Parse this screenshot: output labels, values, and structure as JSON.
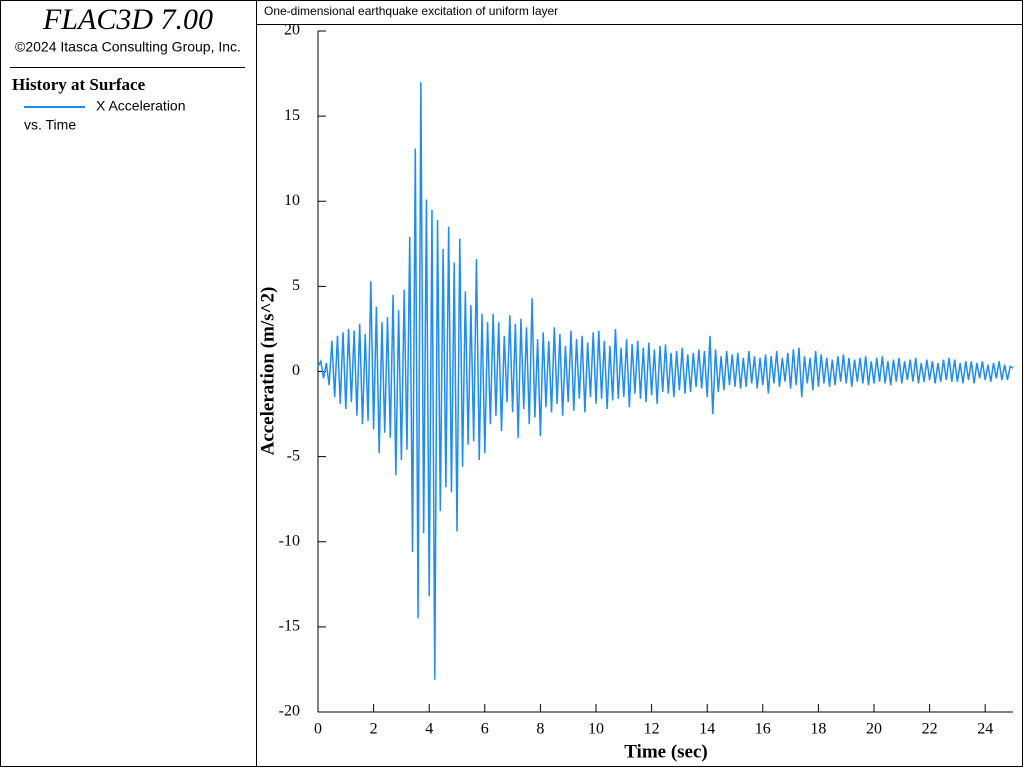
{
  "chart_data": {
    "type": "line",
    "software": "FLAC3D 7.00",
    "copyright": "©2024 Itasca Consulting Group, Inc.",
    "history_title": "History at Surface",
    "history_vs": "vs. Time",
    "title": "One-dimensional earthquake excitation of uniform layer",
    "x_label": "Time (sec)",
    "y_label": "Acceleration (m/s^2)",
    "xlim": [
      0,
      25
    ],
    "ylim": [
      -20,
      20
    ],
    "xticks": [
      0,
      2,
      4,
      6,
      8,
      10,
      12,
      14,
      16,
      18,
      20,
      22,
      24
    ],
    "yticks": [
      -20,
      -15,
      -10,
      -5,
      0,
      5,
      10,
      15,
      20
    ],
    "x": [
      0,
      0.1,
      0.2,
      0.3,
      0.4,
      0.5,
      0.6,
      0.7,
      0.8,
      0.9,
      1,
      1.1,
      1.2,
      1.3,
      1.4,
      1.5,
      1.6,
      1.7,
      1.8,
      1.9,
      2,
      2.1,
      2.2,
      2.3,
      2.4,
      2.5,
      2.6,
      2.7,
      2.8,
      2.9,
      3,
      3.1,
      3.2,
      3.3,
      3.4,
      3.5,
      3.6,
      3.7,
      3.8,
      3.9,
      4,
      4.1,
      4.2,
      4.3,
      4.4,
      4.5,
      4.6,
      4.7,
      4.8,
      4.9,
      5,
      5.1,
      5.2,
      5.3,
      5.4,
      5.5,
      5.6,
      5.7,
      5.8,
      5.9,
      6,
      6.1,
      6.2,
      6.3,
      6.4,
      6.5,
      6.6,
      6.7,
      6.8,
      6.9,
      7,
      7.1,
      7.2,
      7.3,
      7.4,
      7.5,
      7.6,
      7.7,
      7.8,
      7.9,
      8,
      8.1,
      8.2,
      8.3,
      8.4,
      8.5,
      8.6,
      8.7,
      8.8,
      8.9,
      9,
      9.1,
      9.2,
      9.3,
      9.4,
      9.5,
      9.6,
      9.7,
      9.8,
      9.9,
      10,
      10.1,
      10.2,
      10.3,
      10.4,
      10.5,
      10.6,
      10.7,
      10.8,
      10.9,
      11,
      11.1,
      11.2,
      11.3,
      11.4,
      11.5,
      11.6,
      11.7,
      11.8,
      11.9,
      12,
      12.1,
      12.2,
      12.3,
      12.4,
      12.5,
      12.6,
      12.7,
      12.8,
      12.9,
      13,
      13.1,
      13.2,
      13.3,
      13.4,
      13.5,
      13.6,
      13.7,
      13.8,
      13.9,
      14,
      14.1,
      14.2,
      14.3,
      14.4,
      14.5,
      14.6,
      14.7,
      14.8,
      14.9,
      15,
      15.1,
      15.2,
      15.3,
      15.4,
      15.5,
      15.6,
      15.7,
      15.8,
      15.9,
      16,
      16.1,
      16.2,
      16.3,
      16.4,
      16.5,
      16.6,
      16.7,
      16.8,
      16.9,
      17,
      17.1,
      17.2,
      17.3,
      17.4,
      17.5,
      17.6,
      17.7,
      17.8,
      17.9,
      18,
      18.1,
      18.2,
      18.3,
      18.4,
      18.5,
      18.6,
      18.7,
      18.8,
      18.9,
      19,
      19.1,
      19.2,
      19.3,
      19.4,
      19.5,
      19.6,
      19.7,
      19.8,
      19.9,
      20,
      20.1,
      20.2,
      20.3,
      20.4,
      20.5,
      20.6,
      20.7,
      20.8,
      20.9,
      21,
      21.1,
      21.2,
      21.3,
      21.4,
      21.5,
      21.6,
      21.7,
      21.8,
      21.9,
      22,
      22.1,
      22.2,
      22.3,
      22.4,
      22.5,
      22.6,
      22.7,
      22.8,
      22.9,
      23,
      23.1,
      23.2,
      23.3,
      23.4,
      23.5,
      23.6,
      23.7,
      23.8,
      23.9,
      24,
      24.1,
      24.2,
      24.3,
      24.4,
      24.5,
      24.6,
      24.7,
      24.8,
      24.9,
      25
    ],
    "series": [
      {
        "name": "X Acceleration",
        "color": "#1e8cf0",
        "values": [
          0.3,
          0.6,
          -0.4,
          0.5,
          -0.8,
          1.8,
          -1.5,
          2.1,
          -1.9,
          2.3,
          -2.2,
          2.5,
          -1.8,
          2.4,
          -2.6,
          2.8,
          -3.1,
          2.2,
          -2.9,
          5.3,
          -3.4,
          3.8,
          -4.8,
          2.9,
          -3.6,
          3.2,
          -3.9,
          4.5,
          -6.1,
          3.6,
          -5.2,
          4.8,
          -4.6,
          7.9,
          -10.6,
          13.1,
          -14.5,
          17.0,
          -9.5,
          10.1,
          -13.2,
          9.5,
          -18.1,
          8.9,
          -8.2,
          7.2,
          -6.8,
          8.5,
          -7.1,
          6.4,
          -9.4,
          7.8,
          -5.6,
          4.7,
          -4.3,
          3.9,
          -4.1,
          6.6,
          -5.2,
          3.4,
          -4.8,
          2.9,
          -3.1,
          3.4,
          -2.6,
          2.9,
          -3.5,
          2.1,
          -1.8,
          3.3,
          -2.4,
          2.8,
          -3.9,
          3.1,
          -2.2,
          2.6,
          -3.1,
          4.3,
          -2.7,
          1.9,
          -3.8,
          2.3,
          -2.1,
          1.8,
          -2.4,
          2.6,
          -1.9,
          2.2,
          -2.6,
          1.5,
          -1.8,
          2.4,
          -2.3,
          1.9,
          -1.6,
          2.1,
          -2.4,
          1.7,
          -1.5,
          2.3,
          -1.9,
          2.4,
          -1.6,
          1.8,
          -2.2,
          1.5,
          -1.7,
          2.5,
          -1.6,
          1.4,
          -1.5,
          1.9,
          -2.1,
          1.6,
          -1.3,
          1.8,
          -1.6,
          1.4,
          -1.8,
          1.7,
          -1.4,
          1.3,
          -1.9,
          1.5,
          -1.2,
          1.6,
          -1.3,
          1.1,
          -1.5,
          1.2,
          -1.1,
          1.4,
          -1.3,
          1.0,
          -1.2,
          1.1,
          -0.9,
          1.3,
          -1.0,
          1.2,
          -1.5,
          2.1,
          -2.5,
          1.3,
          -1.2,
          0.9,
          -1.1,
          1.2,
          -0.8,
          1.0,
          -0.9,
          1.1,
          -1.0,
          0.8,
          -0.9,
          1.2,
          -0.7,
          0.9,
          -1.0,
          0.8,
          -0.8,
          1.0,
          -1.3,
          0.9,
          -0.7,
          1.2,
          -0.9,
          0.8,
          -0.6,
          1.1,
          -1.0,
          1.3,
          -0.8,
          1.4,
          -1.5,
          0.9,
          -0.7,
          0.8,
          -1.1,
          1.2,
          -0.9,
          1.0,
          -0.7,
          0.8,
          -0.9,
          0.7,
          -0.8,
          0.9,
          -0.6,
          1.0,
          -0.7,
          0.8,
          -0.9,
          0.7,
          -0.6,
          0.8,
          -0.7,
          0.9,
          -0.8,
          0.6,
          -0.7,
          0.8,
          -0.6,
          0.9,
          -0.7,
          0.6,
          -0.8,
          0.7,
          -0.6,
          0.8,
          -0.7,
          0.6,
          -0.5,
          0.7,
          -0.6,
          0.8,
          -0.7,
          0.5,
          -0.6,
          0.7,
          -0.5,
          0.6,
          -0.7,
          0.5,
          -0.6,
          0.7,
          -0.5,
          0.8,
          -0.6,
          0.7,
          -0.6,
          0.5,
          -0.7,
          0.6,
          -0.5,
          0.6,
          -0.7,
          0.5,
          -0.4,
          0.6,
          -0.5,
          0.4,
          -0.6,
          0.5,
          -0.4,
          0.6,
          -0.5,
          0.4,
          -0.5,
          0.3,
          0.2
        ]
      }
    ]
  }
}
